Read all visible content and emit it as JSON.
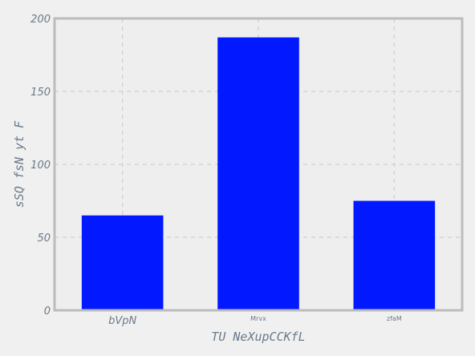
{
  "chart_data": {
    "type": "bar",
    "categories": [
      "bVpN",
      "Mrvx",
      "zfaM"
    ],
    "values": [
      65,
      187,
      75
    ],
    "xlabel": "TU NeXupCCKfL",
    "ylabel": "sSQ fsN yt F",
    "ylim": [
      0,
      200
    ],
    "yticks": [
      0,
      50,
      100,
      150,
      200
    ],
    "grid": true,
    "colors": {
      "bar": "#0219ff",
      "frame": "#bcbcbc",
      "plot_bg": "#eeeeee",
      "page_bg": "#f0f0f0"
    }
  }
}
